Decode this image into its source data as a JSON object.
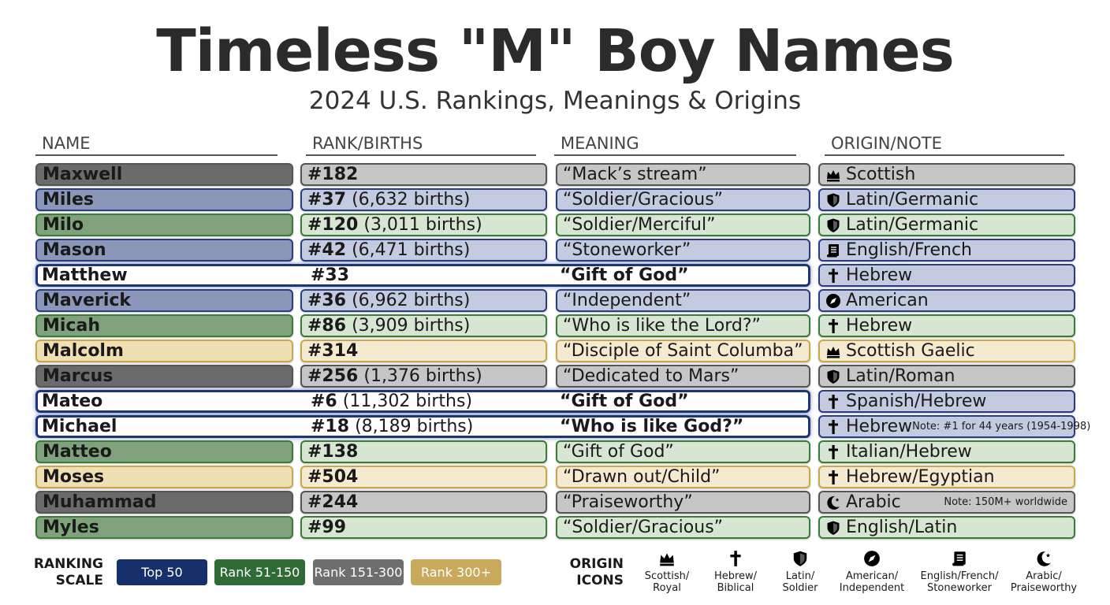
{
  "header": {
    "title": "Timeless \"M\" Boy Names",
    "subtitle": "2024 U.S. Rankings, Meanings & Origins"
  },
  "table": {
    "columns": [
      "NAME",
      "RANK/BIRTHS",
      "MEANING",
      "ORIGIN/NOTE"
    ],
    "rows": [
      {
        "name": "Maxwell",
        "rank": "#182",
        "meaning": "“Mack’s stream”",
        "icon": "crown",
        "origin": "Scottish",
        "tier": 2
      },
      {
        "name": "Miles",
        "rank": "#37",
        "births": "(6,632 births)",
        "meaning": "“Soldier/Gracious”",
        "icon": "shield",
        "origin": "Latin/Germanic",
        "tier": 0
      },
      {
        "name": "Milo",
        "rank": "#120",
        "births": "(3,011 births)",
        "meaning": "“Soldier/Merciful”",
        "icon": "shield",
        "origin": "Latin/Germanic",
        "tier": 1
      },
      {
        "name": "Mason",
        "rank": "#42",
        "births": "(6,471 births)",
        "meaning": "“Stoneworker”",
        "icon": "scroll",
        "origin": "English/French",
        "tier": 0
      },
      {
        "name": "Matthew",
        "rank": "#33",
        "meaning": "“Gift of God”",
        "icon": "cross",
        "origin": "Hebrew",
        "tier": 0,
        "highlight": true
      },
      {
        "name": "Maverick",
        "rank": "#36",
        "births": "(6,962 births)",
        "meaning": "“Independent”",
        "icon": "compass",
        "origin": "American",
        "tier": 0
      },
      {
        "name": "Micah",
        "rank": "#86",
        "births": "(3,909 births)",
        "meaning": "“Who is like the Lord?”",
        "icon": "cross",
        "origin": "Hebrew",
        "tier": 1
      },
      {
        "name": "Malcolm",
        "rank": "#314",
        "meaning": "“Disciple of Saint Columba”",
        "icon": "crown",
        "origin": "Scottish Gaelic",
        "tier": 3
      },
      {
        "name": "Marcus",
        "rank": "#256",
        "births": "(1,376 births)",
        "meaning": "“Dedicated to Mars”",
        "icon": "shield",
        "origin": "Latin/Roman",
        "tier": 2
      },
      {
        "name": "Mateo",
        "rank": "#6",
        "births": "(11,302 births)",
        "meaning": "“Gift of God”",
        "icon": "cross",
        "origin": "Spanish/Hebrew",
        "tier": 0,
        "highlight": true
      },
      {
        "name": "Michael",
        "rank": "#18",
        "births": "(8,189 births)",
        "meaning": "“Who is like God?”",
        "icon": "cross",
        "origin": "Hebrew",
        "note": "Note: #1 for 44 years (1954-1998)",
        "tier": 0,
        "highlight": true
      },
      {
        "name": "Matteo",
        "rank": "#138",
        "meaning": "“Gift of God”",
        "icon": "cross",
        "origin": "Italian/Hebrew",
        "tier": 1
      },
      {
        "name": "Moses",
        "rank": "#504",
        "meaning": "“Drawn out/Child”",
        "icon": "cross",
        "origin": "Hebrew/Egyptian",
        "tier": 3
      },
      {
        "name": "Muhammad",
        "rank": "#244",
        "meaning": "“Praiseworthy”",
        "icon": "crescent",
        "origin": "Arabic",
        "note": "Note: 150M+ worldwide",
        "tier": 2
      },
      {
        "name": "Myles",
        "rank": "#99",
        "meaning": "“Soldier/Gracious”",
        "icon": "shield",
        "origin": "English/Latin",
        "tier": 1
      }
    ]
  },
  "legend": {
    "scale_title": [
      "RANKING",
      "SCALE"
    ],
    "scale": [
      {
        "label": "Top 50",
        "color": "#15306b"
      },
      {
        "label": "Rank 51-150",
        "color": "#2f6b36"
      },
      {
        "label": "Rank 151-300",
        "color": "#6e6e6e"
      },
      {
        "label": "Rank 300+",
        "color": "#c9a95c"
      }
    ],
    "icons_title": [
      "ORIGIN",
      "ICONS"
    ],
    "icons": [
      {
        "icon": "crown",
        "label": [
          "Scottish/",
          "Royal"
        ]
      },
      {
        "icon": "cross",
        "label": [
          "Hebrew/",
          "Biblical"
        ]
      },
      {
        "icon": "shield",
        "label": [
          "Latin/",
          "Soldier"
        ]
      },
      {
        "icon": "compass",
        "label": [
          "American/",
          "Independent"
        ]
      },
      {
        "icon": "scroll",
        "label": [
          "English/French/",
          "Stoneworker"
        ]
      },
      {
        "icon": "crescent",
        "label": [
          "Arabic/",
          "Praiseworthy"
        ]
      }
    ]
  }
}
